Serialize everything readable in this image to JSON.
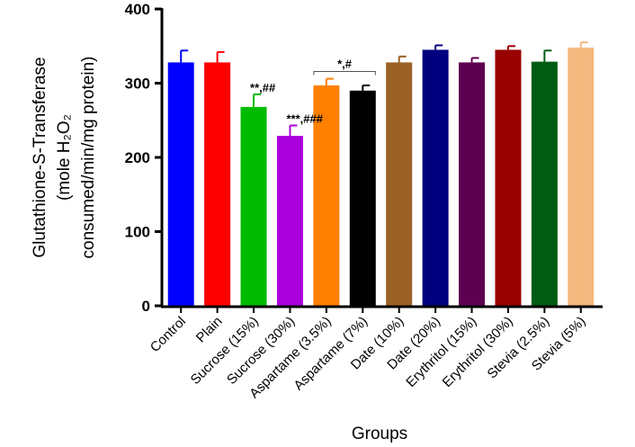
{
  "chart_data": {
    "type": "bar",
    "title": "",
    "xlabel": "Groups",
    "ylabel_lines": [
      "Glutathione-S-Transferase",
      "(mole H₂O₂",
      "consumed/min/mg protein)"
    ],
    "ylim": [
      0,
      400
    ],
    "yticks": [
      0,
      100,
      200,
      300,
      400
    ],
    "categories": [
      "Control",
      "Plain",
      "Sucrose (15%)",
      "Sucrose (30%)",
      "Aspartame (3.5%)",
      "Aspartame (7%)",
      "Date (10%)",
      "Date (20%)",
      "Erythritol (15%)",
      "Erythritol (30%)",
      "Stevia (2.5%)",
      "Stevia (5%)"
    ],
    "values": [
      328,
      328,
      268,
      229,
      297,
      290,
      328,
      345,
      328,
      345,
      329,
      348
    ],
    "errors": [
      16,
      14,
      17,
      14,
      9,
      7,
      8,
      6,
      6,
      5,
      15,
      7
    ],
    "colors": [
      "#0000ff",
      "#ff0000",
      "#00bb00",
      "#aa00dd",
      "#ff8000",
      "#000000",
      "#9a6224",
      "#00007f",
      "#5e0050",
      "#990000",
      "#005c13",
      "#f2b87e"
    ],
    "annotations": [
      {
        "text": "**,##",
        "category_index": 2
      },
      {
        "text": "***,###",
        "category_index": 3
      },
      {
        "text": "*,#",
        "bracket": [
          4,
          5
        ]
      }
    ]
  }
}
